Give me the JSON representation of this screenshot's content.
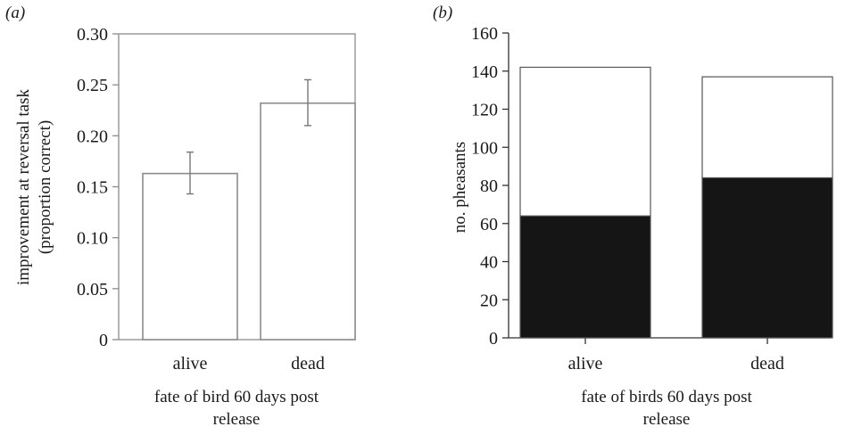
{
  "chart_data": [
    {
      "panel_label": "(a)",
      "type": "bar",
      "categories": [
        "alive",
        "dead"
      ],
      "values": [
        0.163,
        0.232
      ],
      "errors": [
        [
          0.143,
          0.184
        ],
        [
          0.21,
          0.255
        ]
      ],
      "ylim": [
        0,
        0.3
      ],
      "yticks": [
        "0",
        "0.05",
        "0.10",
        "0.15",
        "0.20",
        "0.25",
        "0.30"
      ],
      "ylabel_line1": "improvement at reversal task",
      "ylabel_line2": "(proportion correct)",
      "xlabel_line1": "fate of bird 60 days post",
      "xlabel_line2": "release",
      "colors": {
        "bar_fill": "#ffffff",
        "bar_edge": "#8c8c8c",
        "error": "#777777"
      }
    },
    {
      "panel_label": "(b)",
      "type": "bar",
      "stacked": true,
      "categories": [
        "alive",
        "dead"
      ],
      "series": [
        {
          "values": [
            64,
            84
          ],
          "color": "#151515"
        },
        {
          "values": [
            78,
            53
          ],
          "color": "#ffffff"
        }
      ],
      "totals": [
        142,
        137
      ],
      "ylim": [
        0,
        160
      ],
      "yticks": [
        "0",
        "20",
        "40",
        "60",
        "80",
        "100",
        "120",
        "140",
        "160"
      ],
      "ylabel": "no. pheasants",
      "xlabel_line1": "fate of birds 60 days post",
      "xlabel_line2": "release"
    }
  ]
}
